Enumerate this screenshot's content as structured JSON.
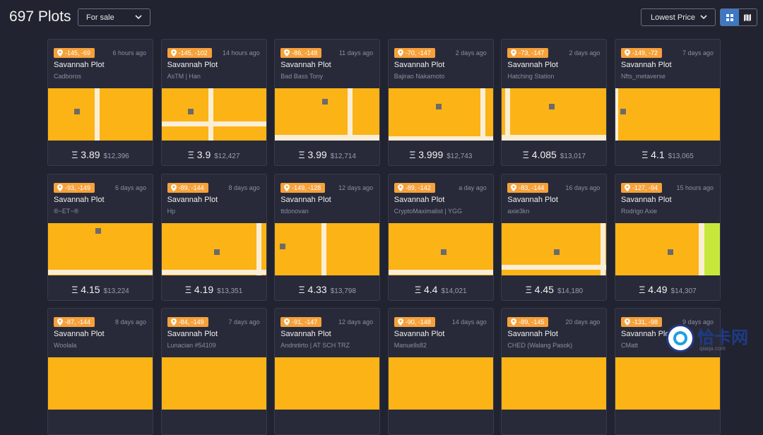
{
  "header": {
    "title": "697 Plots",
    "filter_label": "For sale",
    "sort_label": "Lowest Price"
  },
  "colors": {
    "badge": "#f6a13a",
    "plot": "#fcb316",
    "road": "#fbeed6",
    "toggle_active": "#3d78c5"
  },
  "cards": [
    {
      "coords": "-145, -69",
      "time": "6 hours ago",
      "type": "Savannah Plot",
      "owner": "Cadboros",
      "eth": "Ξ 3.89",
      "usd": "$12,396"
    },
    {
      "coords": "-145, -102",
      "time": "14 hours ago",
      "type": "Savannah Plot",
      "owner": "AsTM | Han",
      "eth": "Ξ 3.9",
      "usd": "$12,427"
    },
    {
      "coords": "-86, -148",
      "time": "11 days ago",
      "type": "Savannah Plot",
      "owner": "Bad Bass Tony",
      "eth": "Ξ 3.99",
      "usd": "$12,714"
    },
    {
      "coords": "-70, -147",
      "time": "2 days ago",
      "type": "Savannah Plot",
      "owner": "Bajirao Nakamoto",
      "eth": "Ξ 3.999",
      "usd": "$12,743"
    },
    {
      "coords": "-73, -147",
      "time": "2 days ago",
      "type": "Savannah Plot",
      "owner": "Hatching Station",
      "eth": "Ξ 4.085",
      "usd": "$13,017"
    },
    {
      "coords": "-149, -72",
      "time": "7 days ago",
      "type": "Savannah Plot",
      "owner": "Nfts_metaverse",
      "eth": "Ξ 4.1",
      "usd": "$13,065"
    },
    {
      "coords": "-93, -149",
      "time": "6 days ago",
      "type": "Savannah Plot",
      "owner": "®~ET~®",
      "eth": "Ξ 4.15",
      "usd": "$13,224"
    },
    {
      "coords": "-89, -144",
      "time": "8 days ago",
      "type": "Savannah Plot",
      "owner": "Hp",
      "eth": "Ξ 4.19",
      "usd": "$13,351"
    },
    {
      "coords": "-149, -128",
      "time": "12 days ago",
      "type": "Savannah Plot",
      "owner": "ttdonovan",
      "eth": "Ξ 4.33",
      "usd": "$13,798"
    },
    {
      "coords": "-89, -142",
      "time": "a day ago",
      "type": "Savannah Plot",
      "owner": "CryptoMaximalist | YGG",
      "eth": "Ξ 4.4",
      "usd": "$14,021"
    },
    {
      "coords": "-83, -144",
      "time": "16 days ago",
      "type": "Savannah Plot",
      "owner": "axie3kn",
      "eth": "Ξ 4.45",
      "usd": "$14,180"
    },
    {
      "coords": "-127, -94",
      "time": "15 hours ago",
      "type": "Savannah Plot",
      "owner": "Rodrigo Axie",
      "eth": "Ξ 4.49",
      "usd": "$14,307"
    },
    {
      "coords": "-87, -144",
      "time": "8 days ago",
      "type": "Savannah Plot",
      "owner": "Woolala",
      "eth": "",
      "usd": ""
    },
    {
      "coords": "-84, -149",
      "time": "7 days ago",
      "type": "Savannah Plot",
      "owner": "Lunacian #54109",
      "eth": "",
      "usd": ""
    },
    {
      "coords": "-91, -147",
      "time": "12 days ago",
      "type": "Savannah Plot",
      "owner": "Andretirto | AT SCH TRZ",
      "eth": "",
      "usd": ""
    },
    {
      "coords": "-90, -148",
      "time": "14 days ago",
      "type": "Savannah Plot",
      "owner": "Manuells82",
      "eth": "",
      "usd": ""
    },
    {
      "coords": "-89, -145",
      "time": "20 days ago",
      "type": "Savannah Plot",
      "owner": "CHED (Walang Pasok)",
      "eth": "",
      "usd": ""
    },
    {
      "coords": "-131, -98",
      "time": "9 days ago",
      "type": "Savannah Plot",
      "owner": "CMatt",
      "eth": "",
      "usd": ""
    }
  ],
  "watermark": {
    "text": "恰卡网",
    "sub": "qiaqa.com"
  }
}
